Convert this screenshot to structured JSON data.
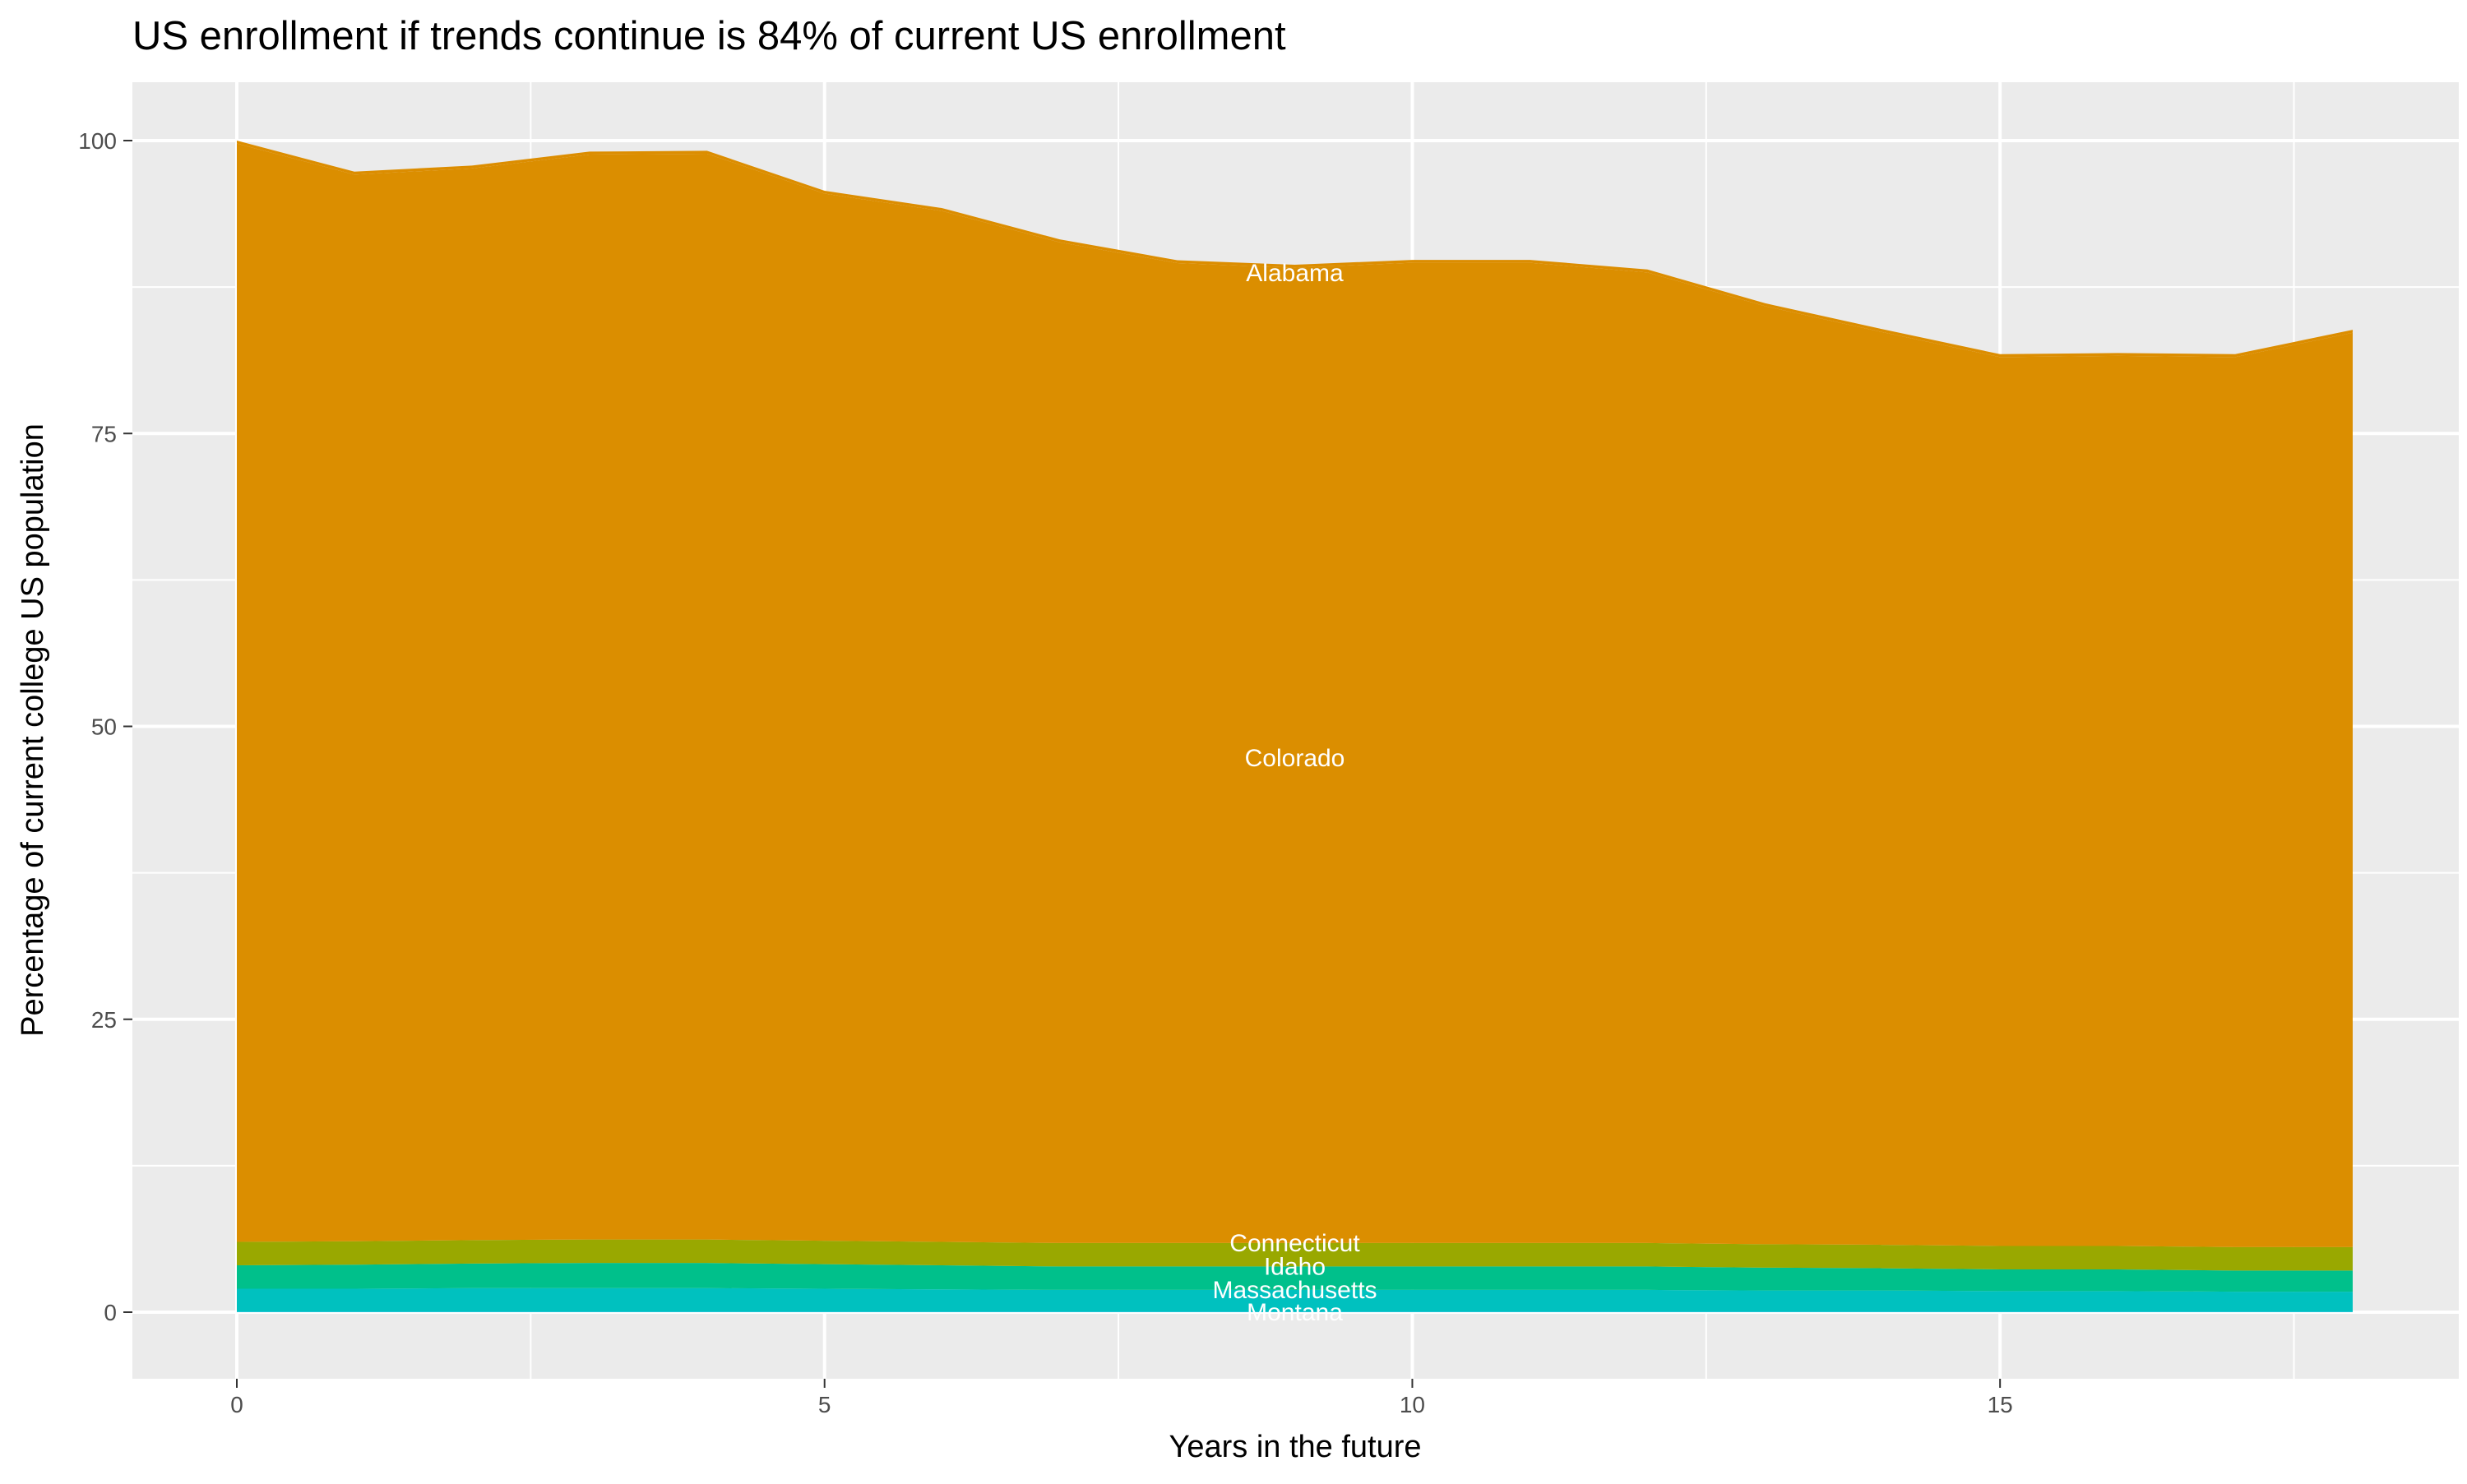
{
  "chart_data": {
    "type": "area",
    "stacked": true,
    "title": "US enrollment if trends continue is 84% of current US enrollment",
    "xlabel": "Years in the future",
    "ylabel": "Percentage of current college US population",
    "xlim": [
      -0.9,
      18.9
    ],
    "ylim": [
      -5,
      105
    ],
    "x_ticks": [
      0,
      5,
      10,
      15
    ],
    "y_ticks": [
      0,
      25,
      50,
      75,
      100
    ],
    "grid": true,
    "legend": "none",
    "x": [
      0,
      1,
      2,
      3,
      4,
      5,
      6,
      7,
      8,
      9,
      10,
      11,
      12,
      13,
      14,
      15,
      16,
      17,
      18
    ],
    "series": [
      {
        "name": "Montana",
        "color": "#00BCD8",
        "values": [
          0.05,
          0.05,
          0.05,
          0.05,
          0.05,
          0.05,
          0.05,
          0.05,
          0.05,
          0.05,
          0.05,
          0.05,
          0.05,
          0.05,
          0.05,
          0.05,
          0.05,
          0.05,
          0.05
        ]
      },
      {
        "name": "Massachusetts",
        "color": "#00C1BF",
        "values": [
          1.95,
          1.95,
          2.0,
          2.0,
          2.0,
          1.95,
          1.9,
          1.85,
          1.85,
          1.85,
          1.85,
          1.85,
          1.85,
          1.8,
          1.8,
          1.75,
          1.75,
          1.7,
          1.7
        ]
      },
      {
        "name": "Idaho",
        "color": "#00C08B",
        "values": [
          2.0,
          2.05,
          2.1,
          2.15,
          2.15,
          2.1,
          2.05,
          2.0,
          2.0,
          2.0,
          2.0,
          2.0,
          2.0,
          1.95,
          1.9,
          1.85,
          1.85,
          1.8,
          1.8
        ]
      },
      {
        "name": "Connecticut",
        "color": "#99A800",
        "values": [
          2.0,
          2.0,
          2.0,
          2.0,
          2.0,
          2.0,
          2.0,
          2.0,
          2.0,
          2.0,
          2.0,
          2.0,
          2.0,
          2.0,
          2.0,
          2.0,
          2.0,
          2.0,
          2.0
        ]
      },
      {
        "name": "Colorado",
        "color": "#DB8E00",
        "values": [
          93.75,
          91.05,
          91.47,
          92.61,
          92.68,
          89.37,
          87.99,
          85.42,
          83.64,
          83.25,
          83.67,
          83.67,
          82.85,
          80.07,
          77.9,
          75.87,
          75.97,
          75.97,
          78.05
        ]
      },
      {
        "name": "Alabama",
        "color": "#DC8D00",
        "values": [
          0.25,
          0.25,
          0.25,
          0.25,
          0.25,
          0.25,
          0.25,
          0.25,
          0.25,
          0.25,
          0.25,
          0.25,
          0.25,
          0.25,
          0.25,
          0.25,
          0.25,
          0.25,
          0.25
        ]
      }
    ],
    "annotations": [
      {
        "text": "Alabama",
        "x": 9,
        "y": 88.7
      },
      {
        "text": "Colorado",
        "x": 9,
        "y": 47.3
      },
      {
        "text": "Connecticut",
        "x": 9,
        "y": 5.9
      },
      {
        "text": "Idaho",
        "x": 9,
        "y": 3.9
      },
      {
        "text": "Massachusetts",
        "x": 9,
        "y": 1.9
      },
      {
        "text": "Montana",
        "x": 9,
        "y": 0
      }
    ]
  }
}
